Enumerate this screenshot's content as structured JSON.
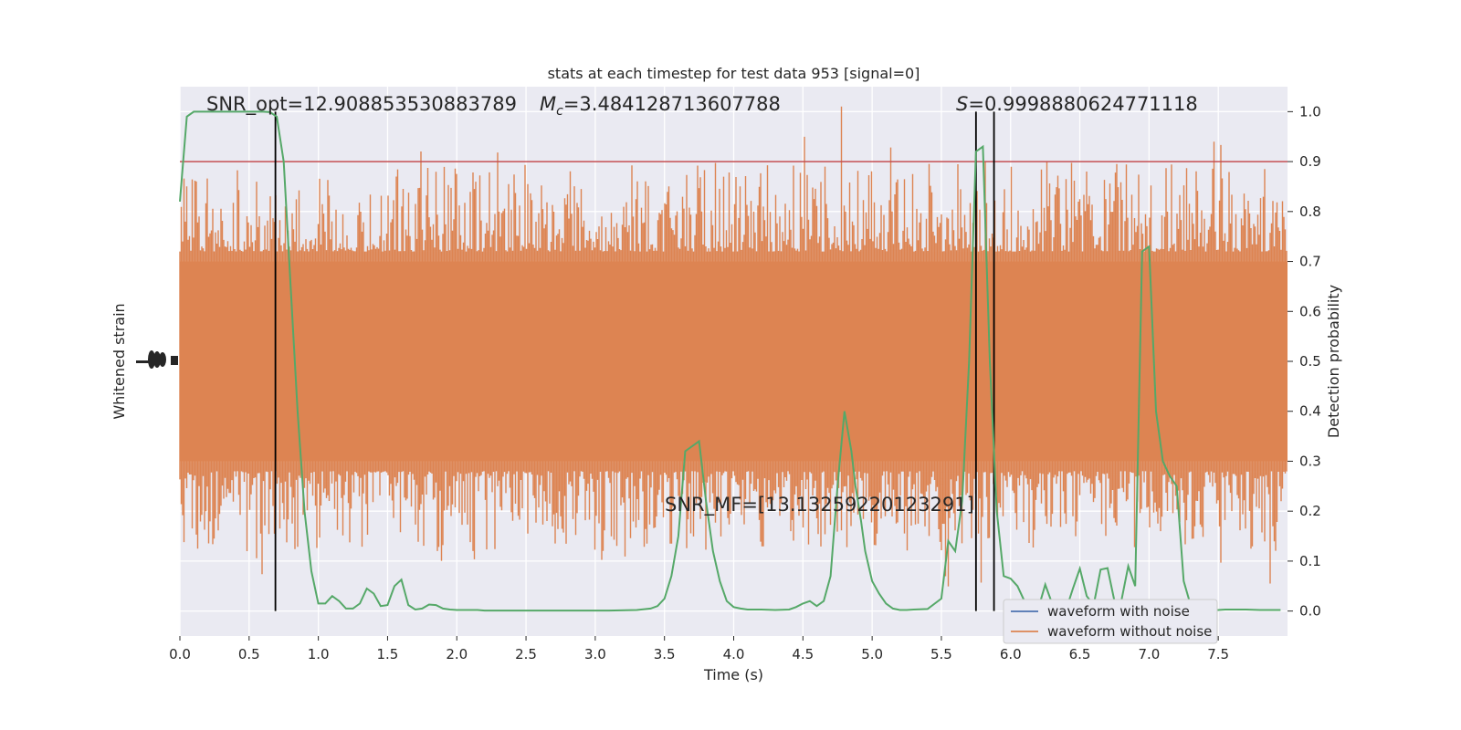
{
  "chart_data": {
    "type": "line",
    "title": "stats at each timestep for test data 953 [signal=0]",
    "xlabel": "Time (s)",
    "ylabel_left": "Whitened strain",
    "ylabel_right": "Detection probability",
    "xlim": [
      0.0,
      8.0
    ],
    "ylim_right": [
      -0.05,
      1.05
    ],
    "xticks": [
      "0.0",
      "0.5",
      "1.0",
      "1.5",
      "2.0",
      "2.5",
      "3.0",
      "3.5",
      "4.0",
      "4.5",
      "5.0",
      "5.5",
      "6.0",
      "6.5",
      "7.0",
      "7.5"
    ],
    "yticks_right": [
      "0.0",
      "0.1",
      "0.2",
      "0.3",
      "0.4",
      "0.5",
      "0.6",
      "0.7",
      "0.8",
      "0.9",
      "1.0"
    ],
    "threshold": 0.9,
    "vlines": [
      0.69,
      5.75,
      5.88
    ],
    "annotations": {
      "snr_opt": "SNR_opt=12.908853530883789",
      "mc_symbol": "M",
      "mc_sub": "c",
      "mc_value": "=3.484128713607788",
      "s_symbol": "S",
      "s_value": "=0.9998880624771118",
      "snr_mf": "SNR_MF=[13.13259220123291]"
    },
    "legend": {
      "position": "lower-right",
      "entries": [
        "waveform with noise",
        "waveform without noise"
      ]
    },
    "series": [
      {
        "name": "waveform with noise",
        "color": "#4c72b0",
        "noise_level": 0.5
      },
      {
        "name": "waveform without noise",
        "color": "#dd8452",
        "noise_level": 0.5
      },
      {
        "color": "#55a868",
        "x": [
          0.0,
          0.05,
          0.1,
          0.15,
          0.2,
          0.25,
          0.3,
          0.35,
          0.4,
          0.45,
          0.5,
          0.55,
          0.6,
          0.65,
          0.7,
          0.75,
          0.8,
          0.85,
          0.9,
          0.95,
          1.0,
          1.05,
          1.1,
          1.15,
          1.2,
          1.25,
          1.3,
          1.35,
          1.4,
          1.45,
          1.5,
          1.55,
          1.6,
          1.65,
          1.7,
          1.75,
          1.8,
          1.85,
          1.9,
          1.95,
          2.0,
          2.05,
          2.1,
          2.15,
          2.2,
          2.3,
          2.5,
          2.7,
          2.9,
          3.1,
          3.3,
          3.4,
          3.45,
          3.5,
          3.55,
          3.6,
          3.65,
          3.7,
          3.75,
          3.8,
          3.85,
          3.9,
          3.95,
          4.0,
          4.05,
          4.1,
          4.2,
          4.3,
          4.4,
          4.45,
          4.5,
          4.55,
          4.6,
          4.65,
          4.7,
          4.75,
          4.8,
          4.85,
          4.88,
          4.92,
          4.95,
          5.0,
          5.05,
          5.1,
          5.15,
          5.2,
          5.25,
          5.3,
          5.4,
          5.5,
          5.55,
          5.6,
          5.65,
          5.7,
          5.75,
          5.8,
          5.85,
          5.9,
          5.95,
          6.0,
          6.05,
          6.1,
          6.15,
          6.2,
          6.25,
          6.3,
          6.35,
          6.4,
          6.45,
          6.5,
          6.55,
          6.6,
          6.65,
          6.7,
          6.75,
          6.8,
          6.85,
          6.9,
          6.95,
          7.0,
          7.05,
          7.1,
          7.15,
          7.2,
          7.25,
          7.3,
          7.35,
          7.4,
          7.45,
          7.5,
          7.55,
          7.6,
          7.65,
          7.7,
          7.8,
          7.95
        ],
        "y": [
          0.82,
          0.99,
          1.0,
          1.0,
          1.0,
          1.0,
          1.0,
          1.0,
          1.0,
          1.0,
          1.0,
          1.0,
          1.0,
          0.999,
          0.99,
          0.9,
          0.65,
          0.4,
          0.2,
          0.08,
          0.015,
          0.015,
          0.03,
          0.02,
          0.005,
          0.005,
          0.015,
          0.045,
          0.035,
          0.01,
          0.012,
          0.05,
          0.063,
          0.012,
          0.003,
          0.005,
          0.013,
          0.012,
          0.005,
          0.003,
          0.002,
          0.002,
          0.002,
          0.002,
          0.001,
          0.001,
          0.001,
          0.001,
          0.001,
          0.001,
          0.002,
          0.005,
          0.01,
          0.025,
          0.07,
          0.15,
          0.32,
          0.33,
          0.34,
          0.22,
          0.12,
          0.06,
          0.02,
          0.008,
          0.005,
          0.003,
          0.003,
          0.002,
          0.003,
          0.008,
          0.015,
          0.02,
          0.01,
          0.02,
          0.07,
          0.25,
          0.4,
          0.32,
          0.25,
          0.18,
          0.12,
          0.06,
          0.035,
          0.015,
          0.005,
          0.002,
          0.002,
          0.003,
          0.004,
          0.025,
          0.14,
          0.12,
          0.22,
          0.5,
          0.92,
          0.93,
          0.5,
          0.2,
          0.07,
          0.065,
          0.05,
          0.02,
          0.01,
          0.005,
          0.053,
          0.015,
          0.005,
          0.002,
          0.045,
          0.085,
          0.03,
          0.012,
          0.083,
          0.086,
          0.02,
          0.02,
          0.09,
          0.05,
          0.72,
          0.73,
          0.4,
          0.3,
          0.27,
          0.25,
          0.06,
          0.012,
          0.003,
          0.002,
          0.002,
          0.002,
          0.003,
          0.003,
          0.003,
          0.003,
          0.002,
          0.002
        ]
      }
    ]
  }
}
